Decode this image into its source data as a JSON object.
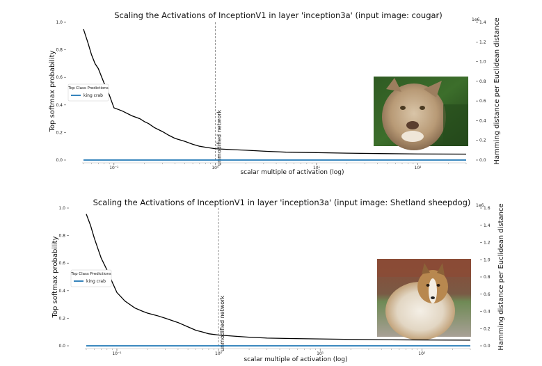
{
  "chart_data": [
    {
      "type": "line",
      "title": "Scaling the Activations of InceptionV1 in layer 'inception3a' (input image: cougar)",
      "xlabel": "scalar multiple of activation (log)",
      "ylabel": "Top softmax probability",
      "y2label": "Hamming distance per Euclidean distance",
      "y2_multiplier": "1e6",
      "xscale": "log",
      "xlim": [
        0.05,
        300
      ],
      "ylim": [
        0,
        1.0
      ],
      "y2lim": [
        0,
        1.4
      ],
      "x_ticks": [
        "10⁻¹",
        "10⁰",
        "10¹",
        "10²"
      ],
      "x_tick_values": [
        0.1,
        1,
        10,
        100
      ],
      "y_ticks": [
        "0.0",
        "0.2",
        "0.4",
        "0.6",
        "0.8",
        "1.0"
      ],
      "y_tick_values": [
        0,
        0.2,
        0.4,
        0.6,
        0.8,
        1.0
      ],
      "y2_ticks": [
        "0.0",
        "0.2",
        "0.4",
        "0.6",
        "0.8",
        "1.0",
        "1.2",
        "1.4"
      ],
      "y2_tick_values": [
        0,
        0.2,
        0.4,
        0.6,
        0.8,
        1.0,
        1.2,
        1.4
      ],
      "vline": {
        "x": 1,
        "label": "unmodified network"
      },
      "legend": {
        "title": "Top Class Predictions",
        "items": [
          "king crab"
        ],
        "placement": "center-left"
      },
      "inset_image": "cougar-photo",
      "series": [
        {
          "name": "Hamming distance per Euclidean distance",
          "color": "#000000",
          "axis": "right",
          "x": [
            0.05,
            0.055,
            0.06,
            0.065,
            0.07,
            0.08,
            0.09,
            0.1,
            0.12,
            0.15,
            0.18,
            0.2,
            0.22,
            0.25,
            0.3,
            0.35,
            0.4,
            0.5,
            0.6,
            0.7,
            0.8,
            1.0,
            1.5,
            2,
            3,
            5,
            10,
            20,
            50,
            100,
            300
          ],
          "values": [
            1.33,
            1.2,
            1.07,
            0.98,
            0.93,
            0.78,
            0.66,
            0.53,
            0.5,
            0.45,
            0.42,
            0.39,
            0.37,
            0.33,
            0.29,
            0.25,
            0.22,
            0.19,
            0.16,
            0.14,
            0.13,
            0.115,
            0.105,
            0.1,
            0.09,
            0.08,
            0.075,
            0.07,
            0.065,
            0.062,
            0.06
          ]
        },
        {
          "name": "king crab",
          "color": "#1f77b4",
          "axis": "left",
          "x": [
            0.05,
            300
          ],
          "values": [
            0.0,
            0.0
          ]
        }
      ]
    },
    {
      "type": "line",
      "title": "Scaling the Activations of InceptionV1 in layer 'inception3a' (input image: Shetland sheepdog)",
      "xlabel": "scalar multiple of activation (log)",
      "ylabel": "Top softmax probability",
      "y2label": "Hamming distance per Euclidean distance",
      "y2_multiplier": "1e6",
      "xscale": "log",
      "xlim": [
        0.05,
        300
      ],
      "ylim": [
        0,
        1.0
      ],
      "y2lim": [
        0,
        1.6
      ],
      "x_ticks": [
        "10⁻¹",
        "10⁰",
        "10¹",
        "10²"
      ],
      "x_tick_values": [
        0.1,
        1,
        10,
        100
      ],
      "y_ticks": [
        "0.0",
        "0.2",
        "0.4",
        "0.6",
        "0.8",
        "1.0"
      ],
      "y_tick_values": [
        0,
        0.2,
        0.4,
        0.6,
        0.8,
        1.0
      ],
      "y2_ticks": [
        "0.0",
        "0.2",
        "0.4",
        "0.6",
        "0.8",
        "1.0",
        "1.2",
        "1.4",
        "1.6"
      ],
      "y2_tick_values": [
        0,
        0.2,
        0.4,
        0.6,
        0.8,
        1.0,
        1.2,
        1.4,
        1.6
      ],
      "vline": {
        "x": 1,
        "label": "unmodified network"
      },
      "legend": {
        "title": "Top Class Predictions",
        "items": [
          "king crab"
        ],
        "placement": "center-left"
      },
      "inset_image": "sheepdog-photo",
      "series": [
        {
          "name": "Hamming distance per Euclidean distance",
          "color": "#000000",
          "axis": "right",
          "x": [
            0.05,
            0.055,
            0.06,
            0.065,
            0.07,
            0.08,
            0.09,
            0.1,
            0.12,
            0.15,
            0.18,
            0.2,
            0.25,
            0.3,
            0.4,
            0.5,
            0.6,
            0.7,
            0.8,
            1.0,
            1.5,
            2,
            3,
            5,
            10,
            20,
            50,
            100,
            300
          ],
          "values": [
            1.53,
            1.4,
            1.25,
            1.13,
            1.02,
            0.88,
            0.74,
            0.62,
            0.52,
            0.44,
            0.4,
            0.38,
            0.35,
            0.32,
            0.27,
            0.22,
            0.18,
            0.16,
            0.14,
            0.125,
            0.11,
            0.1,
            0.09,
            0.085,
            0.08,
            0.075,
            0.07,
            0.068,
            0.066
          ]
        },
        {
          "name": "king crab",
          "color": "#1f77b4",
          "axis": "left",
          "x": [
            0.05,
            300
          ],
          "values": [
            0.0,
            0.0
          ]
        }
      ]
    }
  ]
}
